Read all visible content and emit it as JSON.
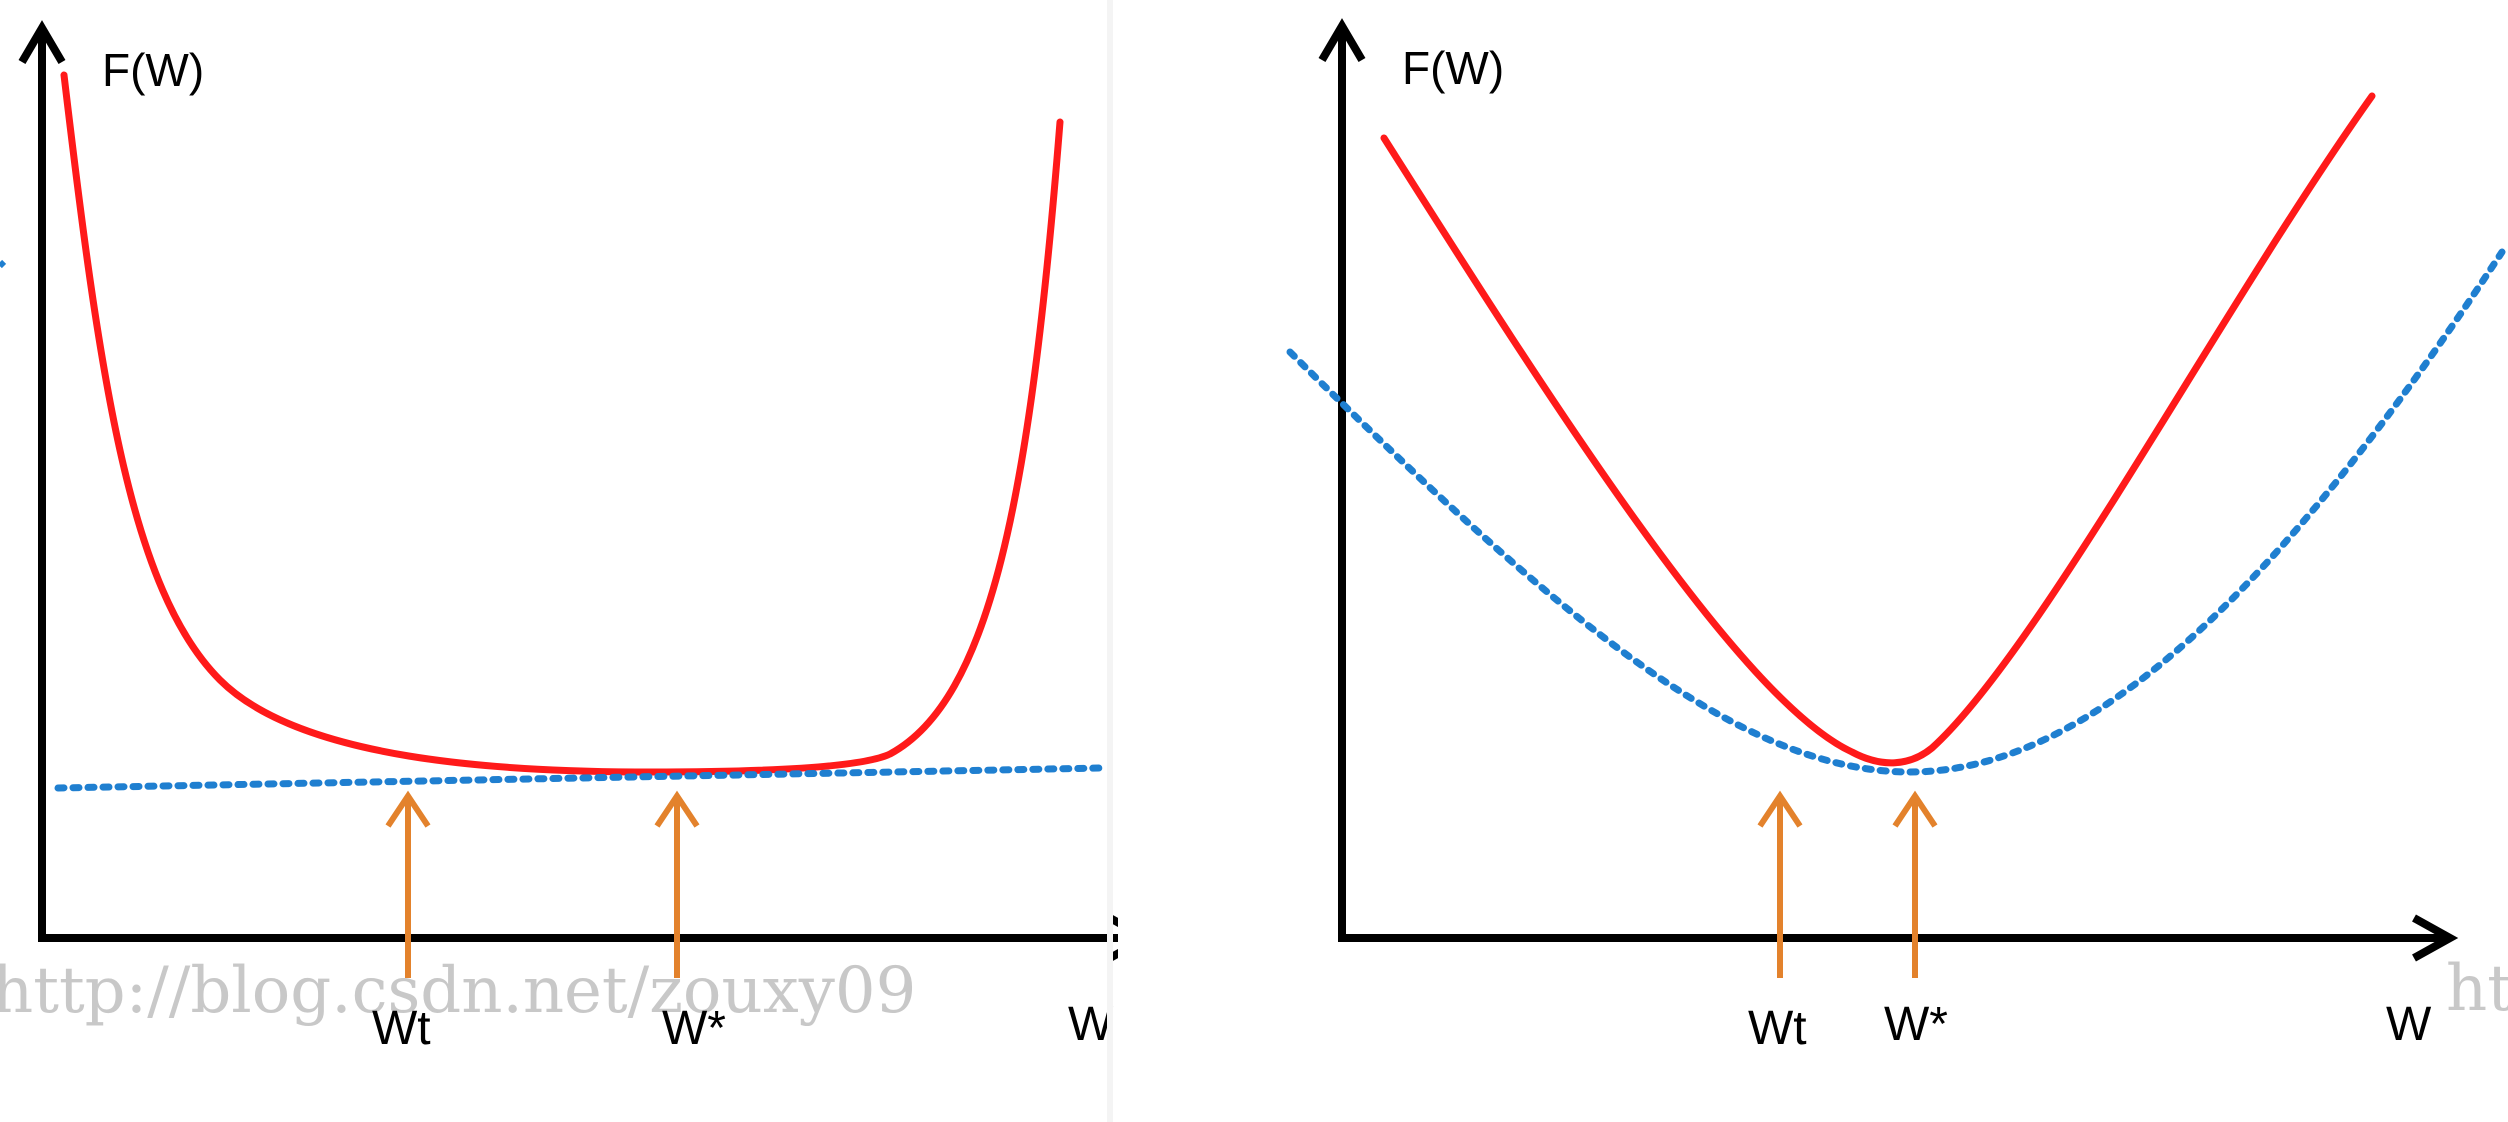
{
  "left_panel": {
    "y_axis_label": "F(W)",
    "x_axis_label": "W",
    "marker_labels": [
      "Wt",
      "W*"
    ],
    "colors": {
      "curve": "#ff1a1a",
      "approximation": "#1f7fd0",
      "arrow": "#e3822c",
      "axis": "#000000"
    }
  },
  "right_panel": {
    "y_axis_label": "F(W)",
    "x_axis_label": "W",
    "marker_labels": [
      "Wt",
      "W*"
    ],
    "colors": {
      "curve": "#ff1a1a",
      "approximation": "#1f7fd0",
      "arrow": "#e3822c",
      "axis": "#000000"
    }
  },
  "watermarks": {
    "left": "http://blog.csdn.net/zouxy09",
    "right": "ht"
  }
}
